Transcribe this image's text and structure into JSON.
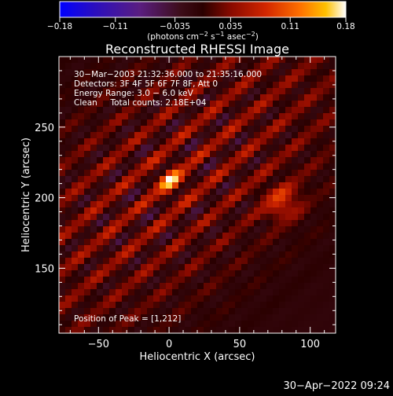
{
  "colorbar": {
    "ticks": [
      -0.18,
      -0.11,
      -0.035,
      0.035,
      0.11,
      0.18
    ],
    "tick_labels": [
      "−0.18",
      "−0.11",
      "−0.035",
      "0.035",
      "0.11",
      "0.18"
    ],
    "units_main": "(photons cm",
    "units_sup1": "−2",
    "units_mid": " s",
    "units_sup2": "−1",
    "units_mid2": " asec",
    "units_sup3": "−2",
    "units_end": ")",
    "colors": [
      "#0000ff",
      "#3a0aa8",
      "#5e1f78",
      "#3a0a0a",
      "#8e0f00",
      "#d42800",
      "#ff6000",
      "#ffb000",
      "#ffffff"
    ]
  },
  "title": "Reconstructed RHESSI Image",
  "annotations": {
    "line1": "30−Mar−2003 21:32:36.000 to 21:35:16.000",
    "line2": "Detectors: 3F 4F 5F 6F 7F 8F, Att 0",
    "line3": "Energy Range: 3.0 − 6.0 keV",
    "line4": "Clean     Total counts: 2.18E+04",
    "peak": "Position of Peak = [1,212]"
  },
  "footer": {
    "timestamp": "30−Apr−2022 09:24"
  },
  "chart_data": {
    "type": "heatmap",
    "title": "Reconstructed RHESSI Image",
    "xlabel": "Heliocentric X (arcsec)",
    "ylabel": "Heliocentric Y (arcsec)",
    "xlim": [
      -78,
      118
    ],
    "ylim": [
      104,
      300
    ],
    "x_ticks": [
      -50,
      0,
      50,
      100
    ],
    "x_tick_labels": [
      "−50",
      "0",
      "50",
      "100"
    ],
    "y_ticks": [
      150,
      200,
      250
    ],
    "y_tick_labels": [
      "150",
      "200",
      "250"
    ],
    "value_range": [
      -0.18,
      0.18
    ],
    "peak_position": [
      1,
      212
    ],
    "stripe_angle_deg": 40
  }
}
